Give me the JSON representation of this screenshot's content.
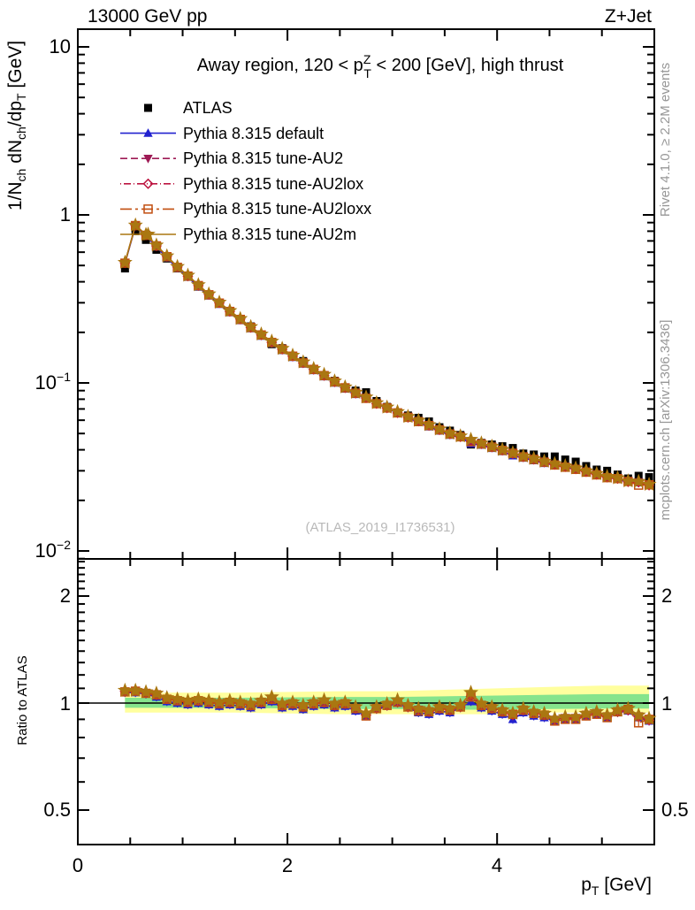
{
  "header": {
    "left": "13000 GeV pp",
    "right": "Z+Jet"
  },
  "panel_title": {
    "pre": "Away region, 120 < p",
    "sup": "Z",
    "sub": "T",
    "post": " < 200 [GeV], high thrust"
  },
  "watermark": "(ATLAS_2019_I1736531)",
  "notes": {
    "top": "Rivet 4.1.0, ≥ 2.2M events",
    "bottom": "mcplots.cern.ch [arXiv:1306.3436]"
  },
  "axes": {
    "y_main": {
      "tick_values": [
        10,
        1,
        0.1,
        0.01
      ],
      "tick_labels": [
        {
          "m": "10",
          "e": ""
        },
        {
          "m": "1",
          "e": ""
        },
        {
          "m": "10",
          "e": "−1"
        },
        {
          "m": "10",
          "e": "−2"
        }
      ],
      "title_parts": [
        [
          "1/N",
          "ch"
        ],
        [
          " dN",
          "ch"
        ],
        [
          "/dp",
          "T"
        ],
        [
          " [GeV]",
          ""
        ]
      ]
    },
    "x": {
      "tick_values": [
        0,
        2,
        4
      ],
      "tick_labels": [
        "0",
        "2",
        "4"
      ],
      "title_parts": [
        [
          "p",
          "T"
        ],
        [
          " [GeV]",
          ""
        ]
      ]
    },
    "ratio": {
      "tick_values": [
        2,
        1,
        0.5
      ],
      "tick_labels": [
        "2",
        "1",
        "0.5"
      ],
      "title": "Ratio to ATLAS"
    }
  },
  "colors": {
    "frame": "#000000",
    "band_yellow": "#ffff9e",
    "band_green": "#86e48c",
    "note_gray": "#979797",
    "watermark_gray": "#b9b9b9"
  },
  "chart_data": {
    "type": "line",
    "title": "Away region, 120 < pT(Z) < 200 [GeV], high thrust",
    "xlabel": "pT [GeV]",
    "ylabel": "1/Nch dNch/dpT [GeV]",
    "ylog": true,
    "xlim": [
      0,
      5.5
    ],
    "ylim_main": [
      0.009,
      12.7
    ],
    "legend_position": "top-left",
    "ratio_panel": {
      "ylabel": "Ratio to ATLAS",
      "ylog": true,
      "ylim": [
        0.4,
        2.54
      ],
      "reference_line": 1,
      "bands": {
        "x": [
          0.45,
          1.5,
          2.5,
          3.0,
          3.5,
          4.0,
          4.5,
          5.0,
          5.45
        ],
        "yellow_hi": [
          1.07,
          1.07,
          1.08,
          1.08,
          1.09,
          1.1,
          1.11,
          1.12,
          1.12
        ],
        "yellow_lo": [
          0.94,
          0.94,
          0.93,
          0.93,
          0.93,
          0.93,
          0.94,
          0.94,
          0.94
        ],
        "green_hi": [
          1.035,
          1.035,
          1.04,
          1.04,
          1.045,
          1.05,
          1.055,
          1.06,
          1.06
        ],
        "green_lo": [
          0.97,
          0.97,
          0.962,
          0.962,
          0.958,
          0.958,
          0.962,
          0.965,
          0.965
        ]
      }
    },
    "x": [
      0.45,
      0.55,
      0.65,
      0.75,
      0.85,
      0.95,
      1.05,
      1.15,
      1.25,
      1.35,
      1.45,
      1.55,
      1.65,
      1.75,
      1.85,
      1.95,
      2.05,
      2.15,
      2.25,
      2.35,
      2.45,
      2.55,
      2.65,
      2.75,
      2.85,
      2.95,
      3.05,
      3.15,
      3.25,
      3.35,
      3.45,
      3.55,
      3.65,
      3.75,
      3.85,
      3.95,
      4.05,
      4.15,
      4.25,
      4.35,
      4.45,
      4.55,
      4.65,
      4.75,
      4.85,
      4.95,
      5.05,
      5.15,
      5.25,
      5.35,
      5.45
    ],
    "series": [
      {
        "id": "atlas",
        "label": "ATLAS",
        "color": "#000000",
        "marker": "square-filled",
        "line": "none",
        "values": [
          0.48,
          0.8,
          0.71,
          0.62,
          0.55,
          0.48,
          0.43,
          0.374,
          0.333,
          0.3,
          0.265,
          0.24,
          0.217,
          0.192,
          0.17,
          0.161,
          0.145,
          0.135,
          0.121,
          0.11,
          0.103,
          0.094,
          0.09,
          0.088,
          0.078,
          0.072,
          0.066,
          0.064,
          0.062,
          0.059,
          0.0545,
          0.052,
          0.049,
          0.043,
          0.044,
          0.043,
          0.042,
          0.041,
          0.038,
          0.0375,
          0.0365,
          0.0365,
          0.035,
          0.034,
          0.032,
          0.0305,
          0.03,
          0.0285,
          0.027,
          0.028,
          0.0275
        ]
      },
      {
        "id": "default",
        "label": "Pythia 8.315 default",
        "color": "#2222cf",
        "marker": "triangle-up-filled",
        "line": "solid",
        "ratio_to_atlas": [
          1.07,
          1.07,
          1.06,
          1.04,
          1.01,
          1.0,
          0.99,
          1.0,
          0.99,
          0.98,
          0.99,
          0.98,
          0.97,
          0.99,
          1.01,
          0.97,
          0.98,
          0.96,
          0.98,
          0.99,
          0.97,
          0.98,
          0.95,
          0.92,
          0.96,
          0.98,
          1.0,
          0.97,
          0.94,
          0.93,
          0.95,
          0.94,
          0.97,
          1.01,
          0.97,
          0.95,
          0.93,
          0.9,
          0.94,
          0.92,
          0.91,
          0.89,
          0.9,
          0.9,
          0.92,
          0.93,
          0.91,
          0.94,
          0.95,
          0.91,
          0.89
        ]
      },
      {
        "id": "au2",
        "label": "Pythia 8.315 tune-AU2",
        "color": "#9e1a55",
        "marker": "triangle-down-filled",
        "line": "dash",
        "ratio_to_atlas": [
          1.08,
          1.08,
          1.07,
          1.06,
          1.03,
          1.02,
          1.01,
          1.02,
          1.01,
          1.0,
          1.01,
          1.0,
          0.99,
          1.01,
          1.03,
          0.99,
          1.0,
          0.98,
          1.0,
          1.01,
          0.99,
          1.0,
          0.97,
          0.93,
          0.97,
          0.99,
          1.01,
          0.98,
          0.96,
          0.95,
          0.97,
          0.96,
          0.98,
          1.05,
          0.99,
          0.97,
          0.95,
          0.93,
          0.96,
          0.94,
          0.93,
          0.9,
          0.91,
          0.91,
          0.93,
          0.94,
          0.92,
          0.95,
          0.96,
          0.92,
          0.9
        ]
      },
      {
        "id": "au2lox",
        "label": "Pythia 8.315 tune-AU2lox",
        "color": "#bc1540",
        "marker": "diamond-open",
        "line": "dash-dot-dot",
        "ratio_to_atlas": [
          1.08,
          1.085,
          1.07,
          1.055,
          1.03,
          1.02,
          1.005,
          1.015,
          1.01,
          1.0,
          1.005,
          1.0,
          0.985,
          1.005,
          1.025,
          0.985,
          0.995,
          0.975,
          0.995,
          1.005,
          0.985,
          0.995,
          0.965,
          0.925,
          0.965,
          0.985,
          1.005,
          0.975,
          0.955,
          0.945,
          0.965,
          0.955,
          0.975,
          1.045,
          0.985,
          0.965,
          0.945,
          0.925,
          0.955,
          0.935,
          0.925,
          0.895,
          0.905,
          0.905,
          0.925,
          0.935,
          0.915,
          0.945,
          0.955,
          0.915,
          0.895
        ]
      },
      {
        "id": "au2loxx",
        "label": "Pythia 8.315 tune-AU2loxx",
        "color": "#c14f10",
        "marker": "square-open",
        "line": "long-dash-dot",
        "ratio_to_atlas": [
          1.075,
          1.08,
          1.065,
          1.055,
          1.025,
          1.015,
          1.005,
          1.015,
          1.005,
          0.995,
          1.005,
          0.995,
          0.985,
          1.005,
          1.025,
          0.985,
          0.995,
          0.975,
          0.995,
          1.005,
          0.985,
          0.995,
          0.965,
          0.92,
          0.965,
          0.985,
          1.005,
          0.975,
          0.95,
          0.945,
          0.965,
          0.955,
          0.975,
          1.04,
          0.985,
          0.965,
          0.945,
          0.93,
          0.955,
          0.935,
          0.925,
          0.89,
          0.9,
          0.9,
          0.92,
          0.93,
          0.91,
          0.945,
          0.96,
          0.88,
          0.9
        ]
      },
      {
        "id": "au2m",
        "label": "Pythia 8.315 tune-AU2m",
        "color": "#aa7711",
        "marker": "star-filled",
        "line": "solid",
        "ratio_to_atlas": [
          1.085,
          1.085,
          1.075,
          1.065,
          1.035,
          1.025,
          1.015,
          1.025,
          1.015,
          1.005,
          1.015,
          1.005,
          0.995,
          1.015,
          1.04,
          0.995,
          1.005,
          0.985,
          1.005,
          1.02,
          0.995,
          1.005,
          0.975,
          0.935,
          0.975,
          0.995,
          1.02,
          0.985,
          0.965,
          0.955,
          0.975,
          0.965,
          0.985,
          1.07,
          0.995,
          0.975,
          0.955,
          0.935,
          0.965,
          0.945,
          0.935,
          0.905,
          0.915,
          0.915,
          0.935,
          0.945,
          0.925,
          0.955,
          0.965,
          0.925,
          0.905
        ]
      }
    ]
  }
}
